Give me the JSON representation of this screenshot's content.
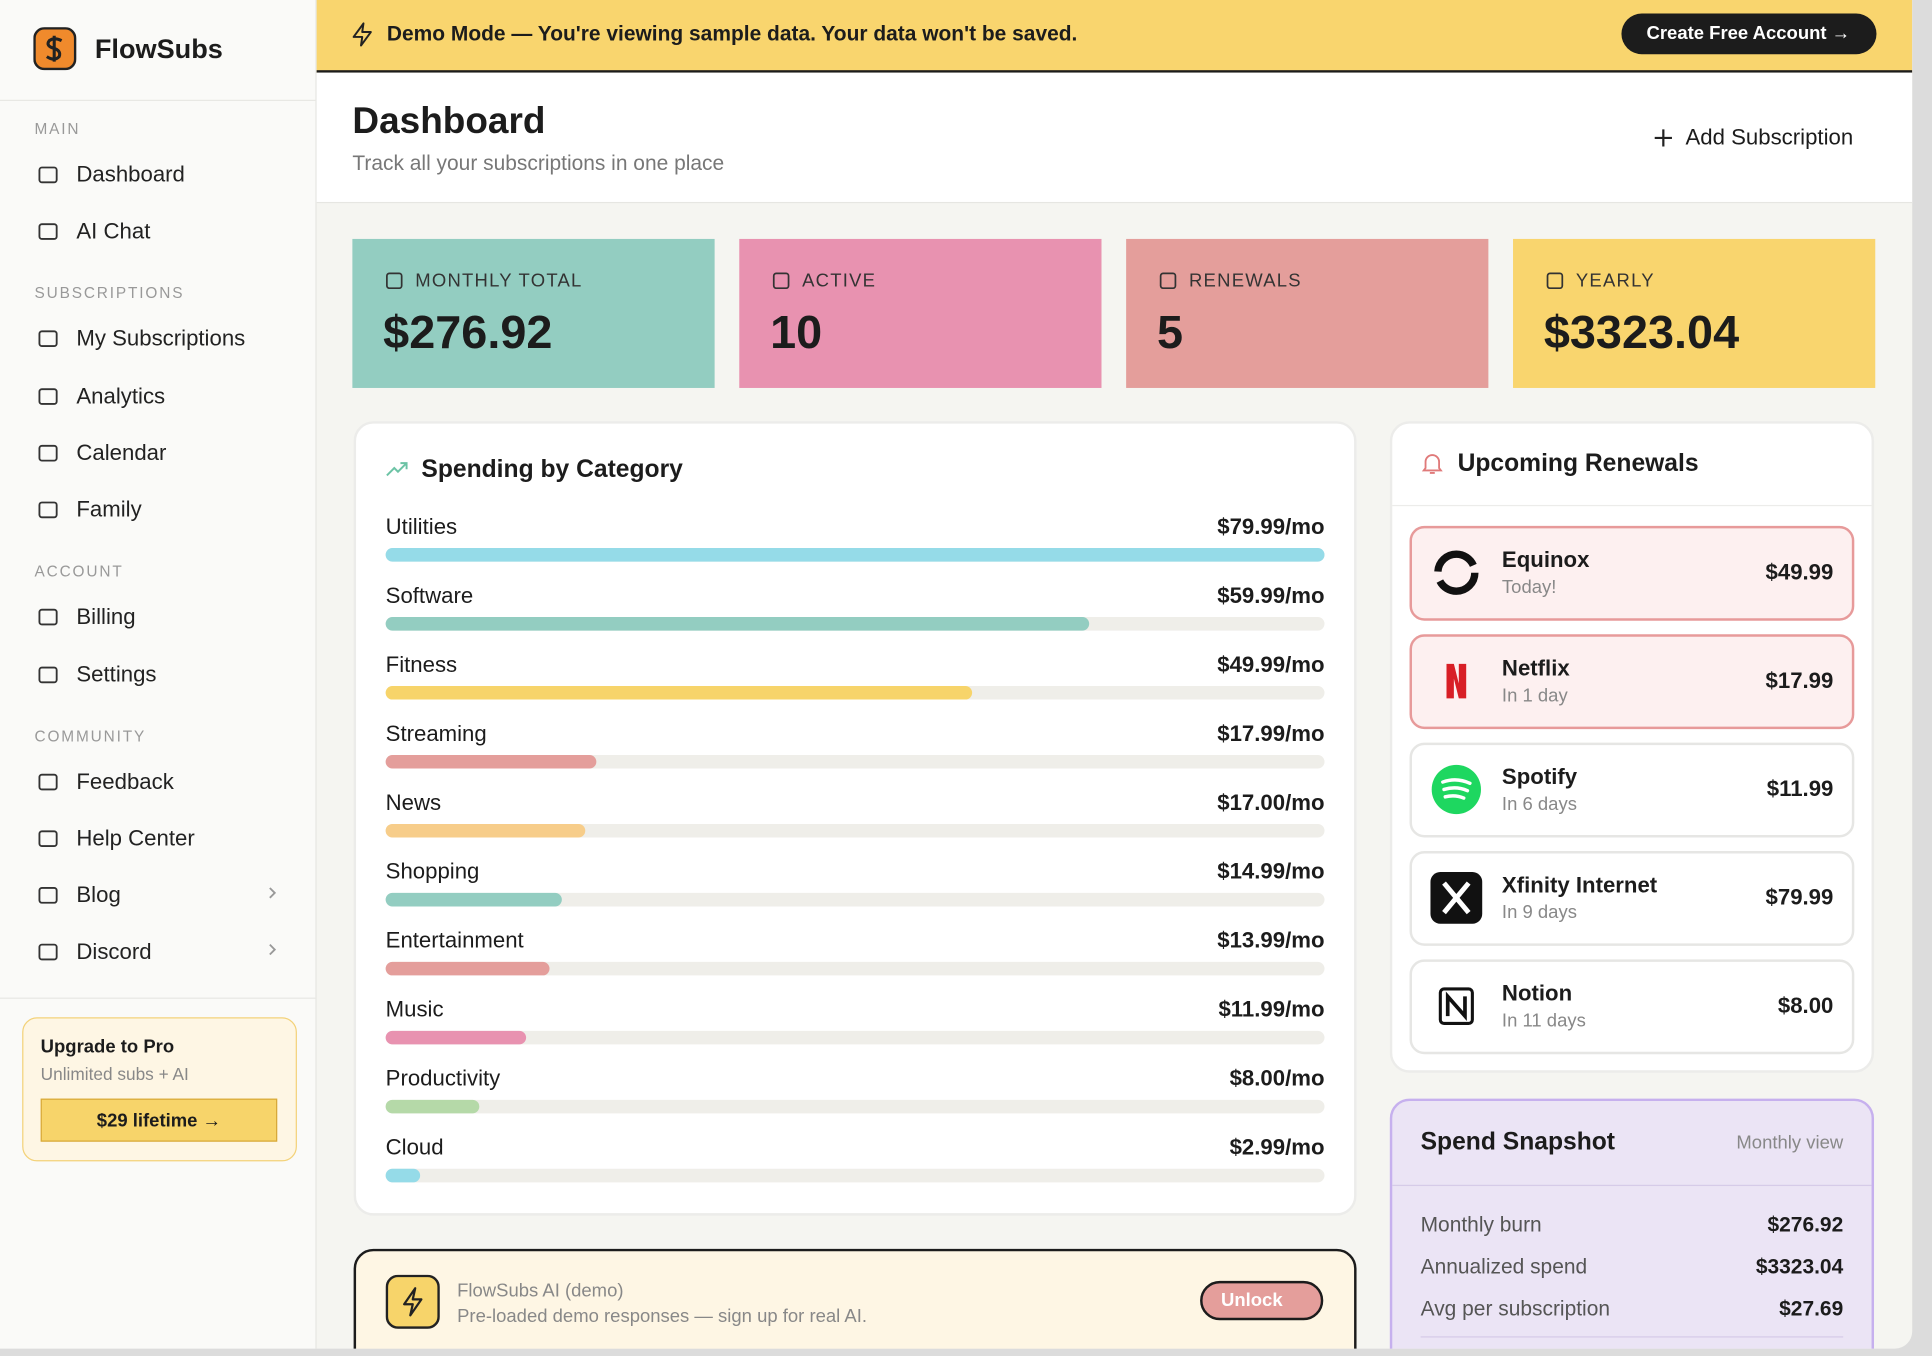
{
  "sidebar": {
    "brand": "FlowSubs",
    "sections": [
      {
        "title": "MAIN",
        "items": [
          "Dashboard",
          "AI Chat"
        ]
      },
      {
        "title": "SUBSCRIPTIONS",
        "items": [
          "My Subscriptions",
          "Analytics",
          "Calendar",
          "Family"
        ]
      },
      {
        "title": "ACCOUNT",
        "items": [
          "Billing",
          "Settings"
        ]
      },
      {
        "title": "COMMUNITY",
        "items": [
          "Feedback",
          "Help Center",
          "Blog",
          "Discord"
        ]
      }
    ],
    "upgrade": {
      "title": "Upgrade to Pro",
      "subtitle": "Unlimited subs + AI",
      "button": "$29 lifetime →"
    }
  },
  "banner": {
    "text": "Demo Mode — You're viewing sample data. Your data won't be saved.",
    "button": "Create Free Account →"
  },
  "header": {
    "title": "Dashboard",
    "subtitle": "Track all your subscriptions in one place",
    "action": "Add Subscription"
  },
  "stats": [
    {
      "label": "MONTHLY TOTAL",
      "value": "$276.92",
      "color": "#93cdc1"
    },
    {
      "label": "ACTIVE",
      "value": "10",
      "color": "#e892b0"
    },
    {
      "label": "RENEWALS",
      "value": "5",
      "color": "#e49e9b"
    },
    {
      "label": "YEARLY",
      "value": "$3323.04",
      "color": "#f9d56e"
    }
  ],
  "spending": {
    "title": "Spending by Category",
    "categories": [
      {
        "name": "Utilities",
        "value": 79.99,
        "label": "$79.99/mo",
        "color": "#95dbe8"
      },
      {
        "name": "Software",
        "value": 59.99,
        "label": "$59.99/mo",
        "color": "#93cdc1"
      },
      {
        "name": "Fitness",
        "value": 49.99,
        "label": "$49.99/mo",
        "color": "#f7d46a"
      },
      {
        "name": "Streaming",
        "value": 17.99,
        "label": "$17.99/mo",
        "color": "#e49e9b"
      },
      {
        "name": "News",
        "value": 17.0,
        "label": "$17.00/mo",
        "color": "#f7cd8a"
      },
      {
        "name": "Shopping",
        "value": 14.99,
        "label": "$14.99/mo",
        "color": "#93cdc1"
      },
      {
        "name": "Entertainment",
        "value": 13.99,
        "label": "$13.99/mo",
        "color": "#e49e9b"
      },
      {
        "name": "Music",
        "value": 11.99,
        "label": "$11.99/mo",
        "color": "#e892b0"
      },
      {
        "name": "Productivity",
        "value": 8.0,
        "label": "$8.00/mo",
        "color": "#b5d9a8"
      },
      {
        "name": "Cloud",
        "value": 2.99,
        "label": "$2.99/mo",
        "color": "#95dbe8"
      }
    ]
  },
  "renewals": {
    "title": "Upcoming Renewals",
    "items": [
      {
        "name": "Equinox",
        "due": "Today!",
        "amount": "$49.99"
      },
      {
        "name": "Netflix",
        "due": "In 1 day",
        "amount": "$17.99"
      },
      {
        "name": "Spotify",
        "due": "In 6 days",
        "amount": "$11.99"
      },
      {
        "name": "Xfinity Internet",
        "due": "In 9 days",
        "amount": "$79.99"
      },
      {
        "name": "Notion",
        "due": "In 11 days",
        "amount": "$8.00"
      }
    ]
  },
  "ai": {
    "title": "FlowSubs AI (demo)",
    "subtitle": "Pre-loaded demo responses — sign up for real AI.",
    "button": "Unlock"
  },
  "snapshot": {
    "title": "Spend Snapshot",
    "view": "Monthly view",
    "rows": [
      {
        "label": "Monthly burn",
        "value": "$276.92"
      },
      {
        "label": "Annualized spend",
        "value": "$3323.04"
      },
      {
        "label": "Avg per subscription",
        "value": "$27.69"
      }
    ]
  }
}
